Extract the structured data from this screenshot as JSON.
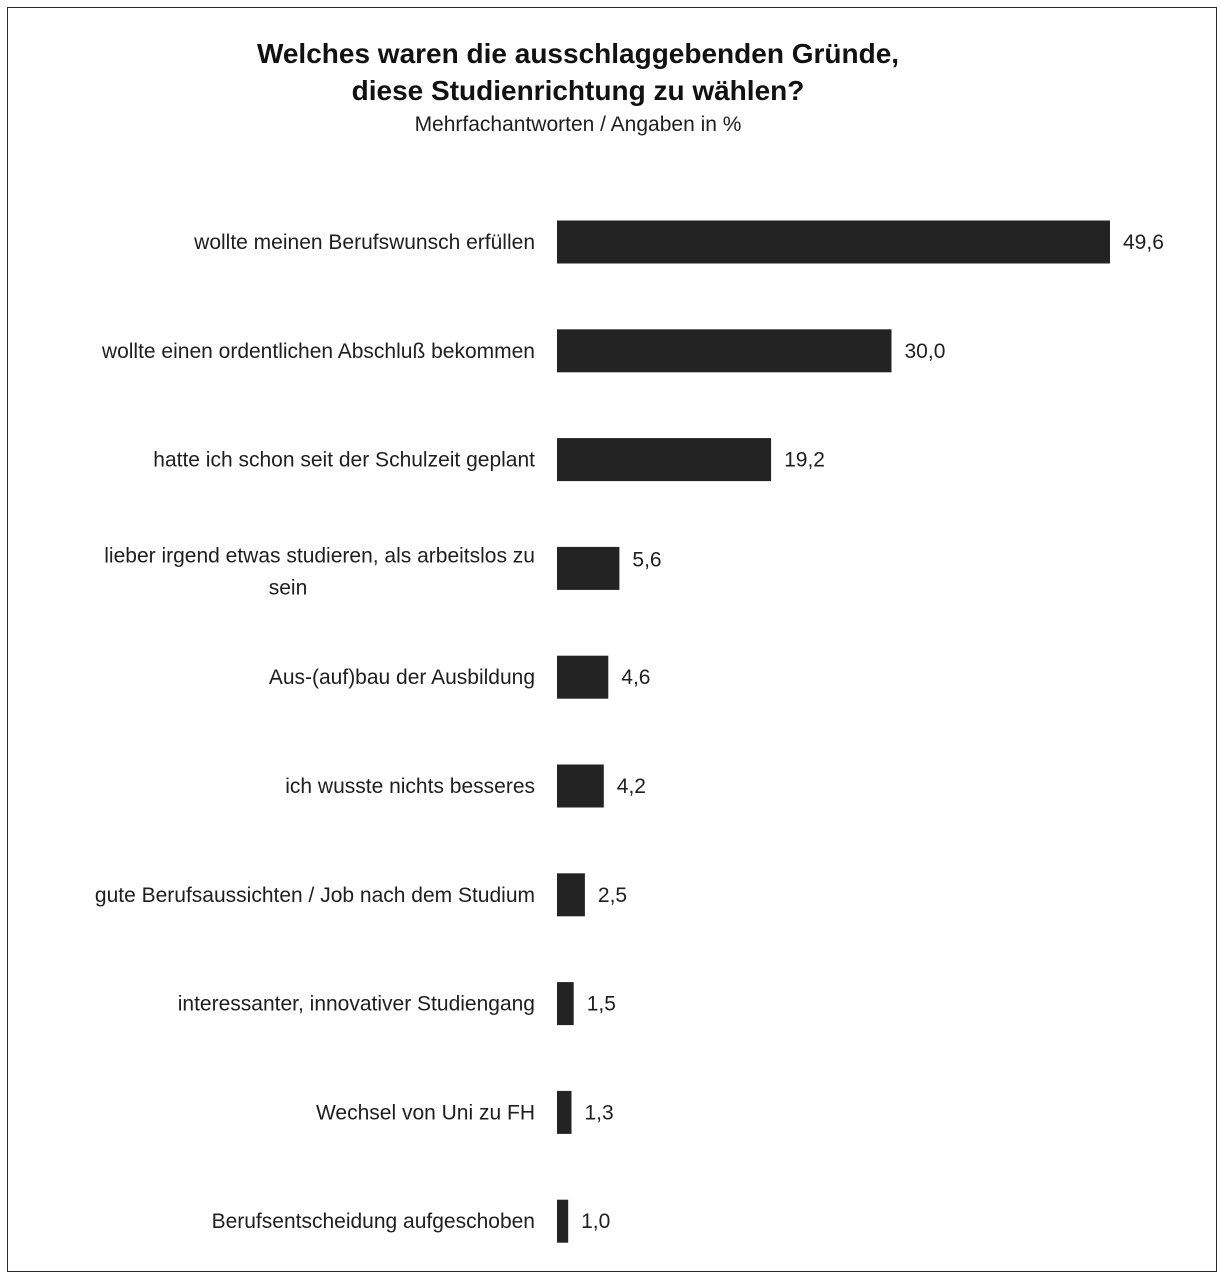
{
  "title_line1": "Welches waren die ausschlaggebenden Gründe,",
  "title_line2": "diese Studienrichtung zu wählen?",
  "subtitle": "Mehrfachantworten / Angaben in %",
  "colors": {
    "bar": "#232323",
    "text": "#1e1e1e",
    "background": "#ffffff"
  },
  "chart_data": {
    "type": "bar",
    "orientation": "horizontal",
    "title": "Welches waren die ausschlaggebenden Gründe, diese Studienrichtung zu wählen?",
    "subtitle": "Mehrfachantworten / Angaben in %",
    "xlabel": "",
    "ylabel": "",
    "grid": false,
    "legend": "none",
    "categories": [
      "wollte meinen Berufswunsch erfüllen",
      "wollte einen ordentlichen Abschluß bekommen",
      "hatte ich schon seit der Schulzeit geplant",
      "lieber irgend etwas studieren, als arbeitslos zu sein",
      "Aus-(auf)bau der Ausbildung",
      "ich wusste nichts besseres",
      "gute Berufsaussichten / Job nach dem Studium",
      "interessanter, innovativer Studiengang",
      "Wechsel von Uni zu FH",
      "Berufsentscheidung aufgeschoben"
    ],
    "category_lines": [
      [
        "wollte meinen Berufswunsch erfüllen"
      ],
      [
        "wollte einen ordentlichen Abschluß bekommen"
      ],
      [
        "hatte ich schon seit der Schulzeit geplant"
      ],
      [
        "lieber irgend etwas studieren, als arbeitslos zu",
        "sein"
      ],
      [
        "Aus-(auf)bau der Ausbildung"
      ],
      [
        "ich wusste nichts besseres"
      ],
      [
        "gute Berufsaussichten / Job nach dem Studium"
      ],
      [
        "interessanter, innovativer Studiengang"
      ],
      [
        "Wechsel von Uni zu FH"
      ],
      [
        "Berufsentscheidung aufgeschoben"
      ]
    ],
    "values": [
      49.6,
      30.0,
      19.2,
      5.6,
      4.6,
      4.2,
      2.5,
      1.5,
      1.3,
      1.0
    ],
    "value_labels": [
      "49,6",
      "30,0",
      "19,2",
      "5,6",
      "4,6",
      "4,2",
      "2,5",
      "1,5",
      "1,3",
      "1,0"
    ]
  }
}
